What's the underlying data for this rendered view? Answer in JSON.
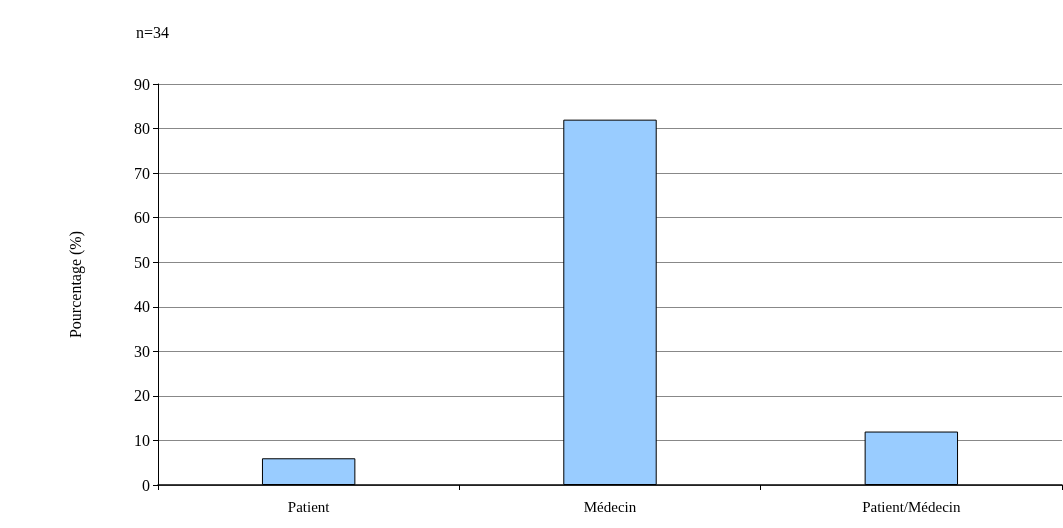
{
  "chart_data": {
    "type": "bar",
    "annotations": [
      "n=34"
    ],
    "ylabel": "Pourcentage (%)",
    "categories": [
      "Patient",
      "Médecin",
      "Patient/Médecin"
    ],
    "values": [
      6,
      82,
      12
    ],
    "color": "#99ccff",
    "ylim": [
      0,
      90
    ],
    "yticks": [
      0,
      10,
      20,
      30,
      40,
      50,
      60,
      70,
      80,
      90
    ],
    "grid": "y"
  }
}
